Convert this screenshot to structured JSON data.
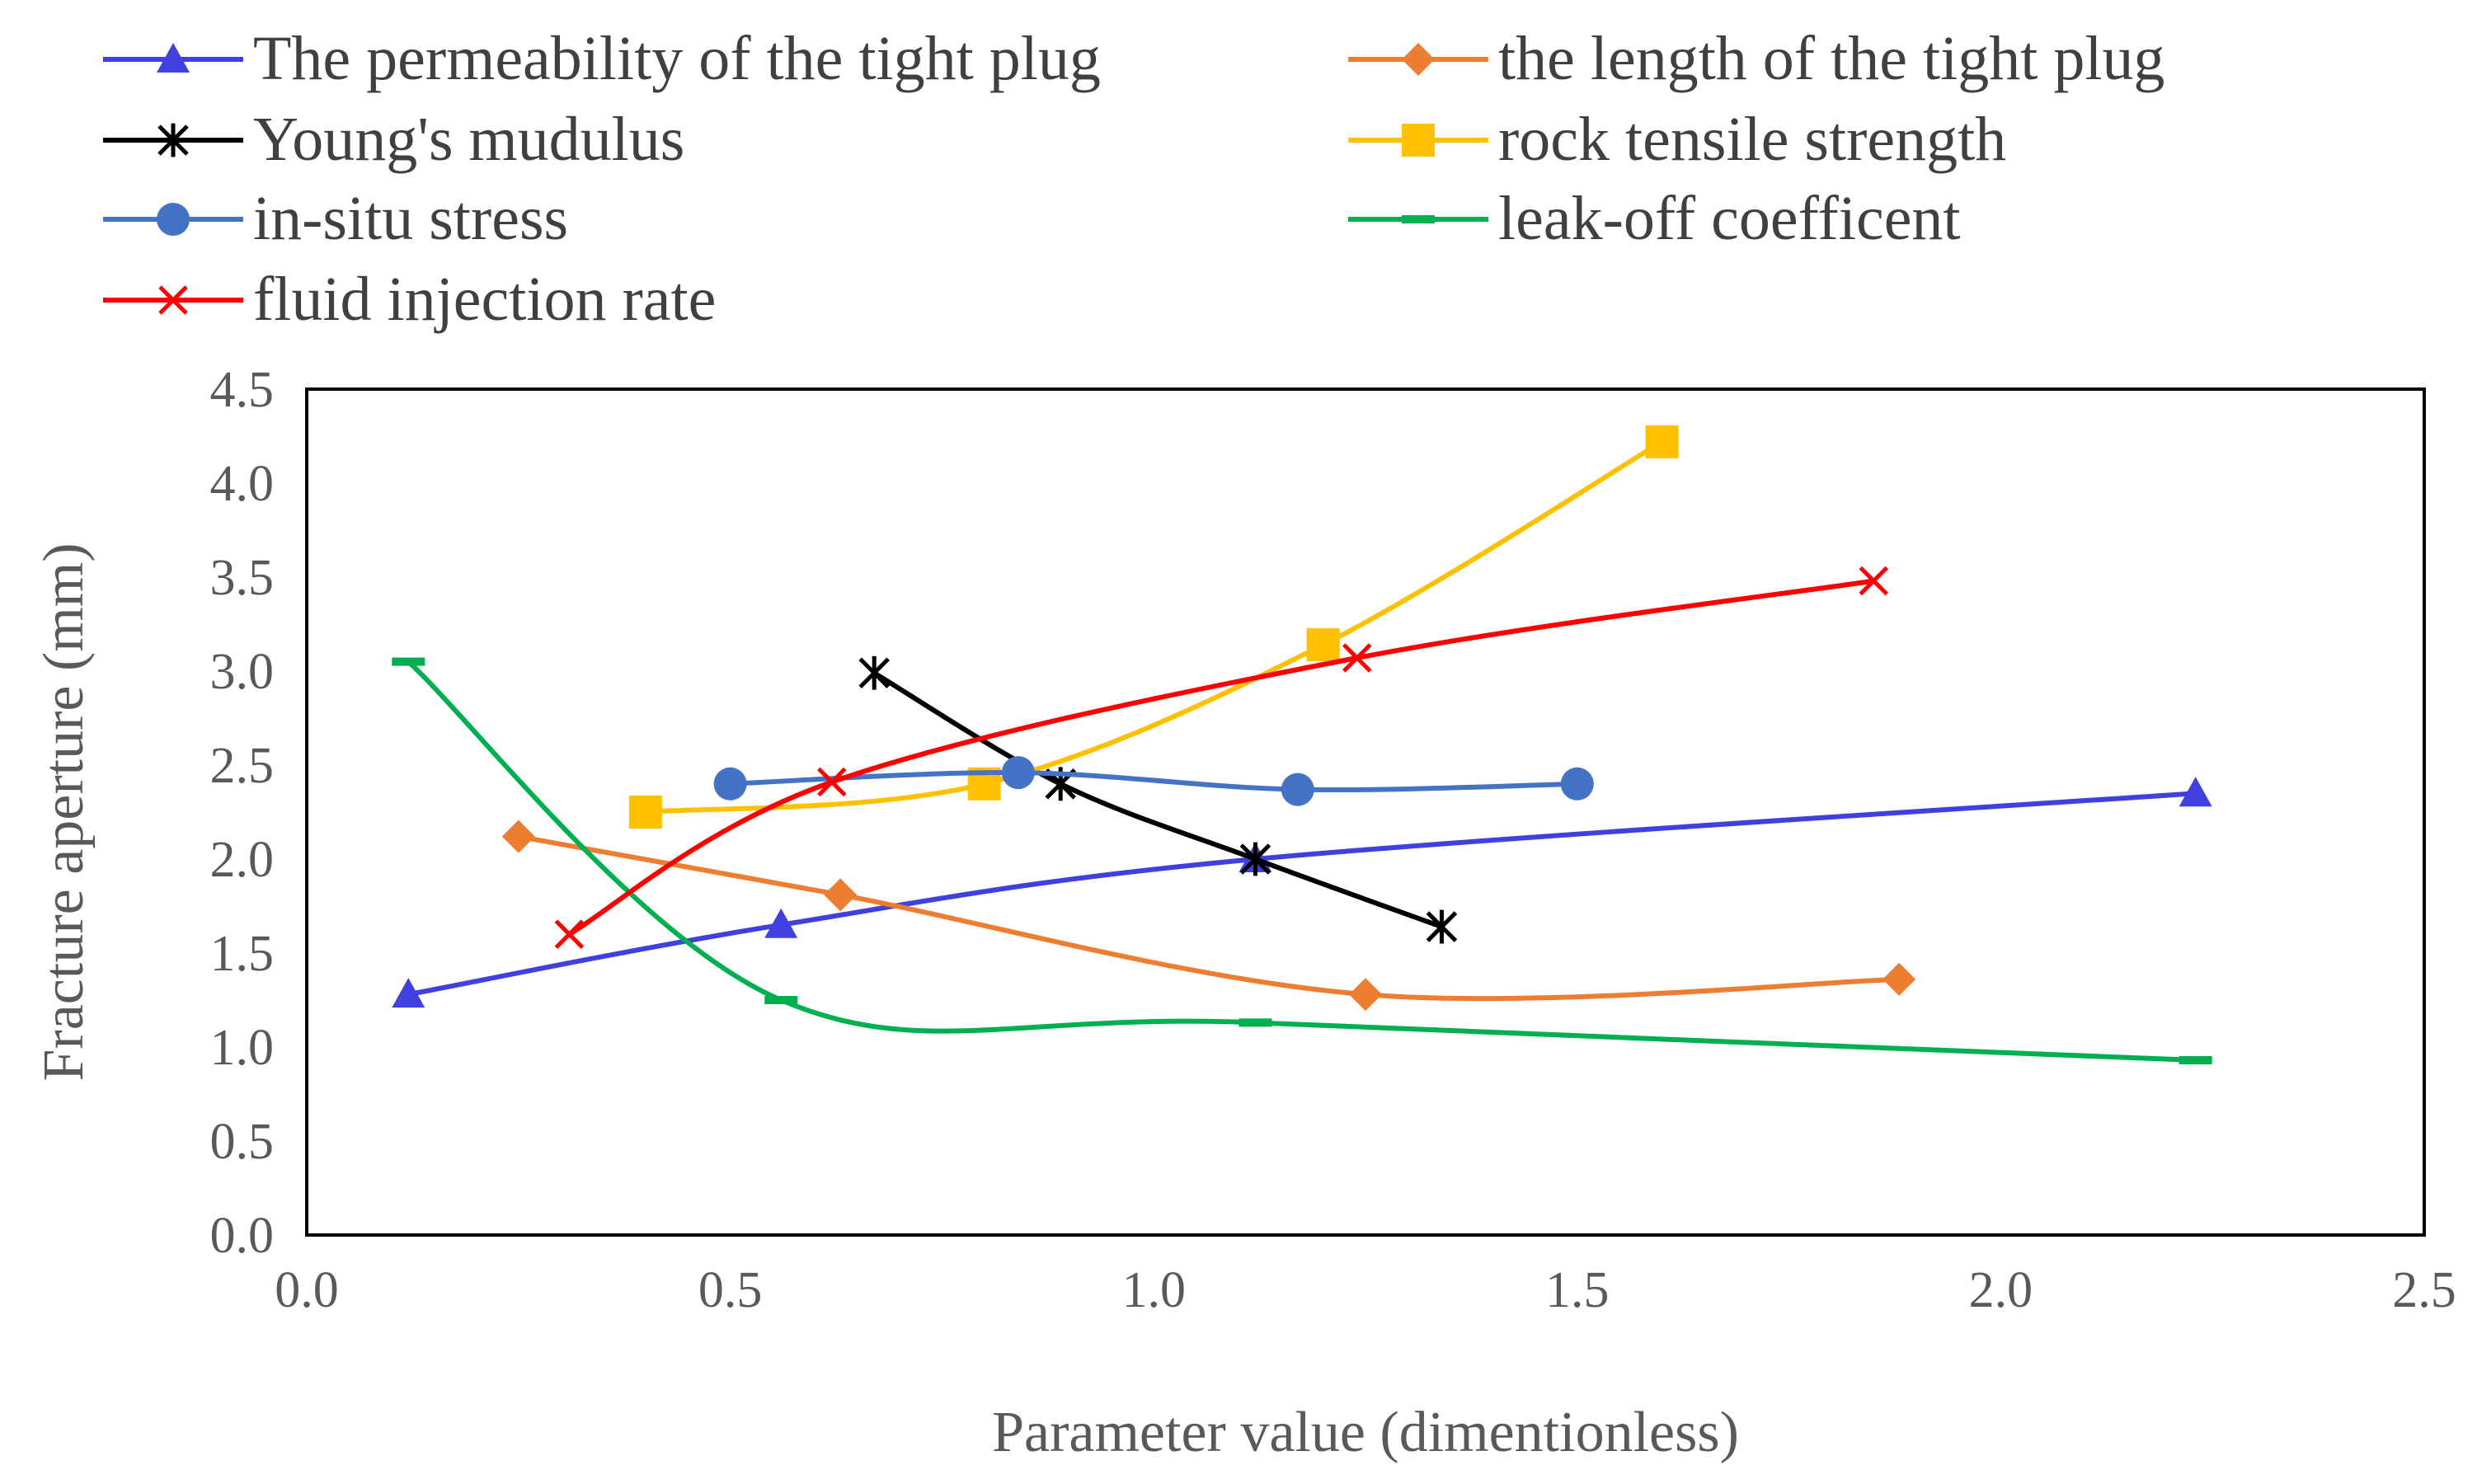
{
  "chart_data": {
    "type": "line",
    "xlabel": "Parameter value (dimentionless)",
    "ylabel": "Fracture aperture (mm)",
    "xlim": [
      0,
      2.5
    ],
    "ylim": [
      0,
      4.5
    ],
    "xticks": [
      "0.0",
      "0.5",
      "1.0",
      "1.5",
      "2.0",
      "2.5"
    ],
    "yticks": [
      "0.0",
      "0.5",
      "1.0",
      "1.5",
      "2.0",
      "2.5",
      "3.0",
      "3.5",
      "4.0",
      "4.5"
    ],
    "grid": false,
    "legend_position": "top",
    "series": [
      {
        "name": "The permeability of the tight plug",
        "color": "#4040e0",
        "marker": "triangle",
        "points": [
          [
            0.12,
            1.28
          ],
          [
            0.56,
            1.65
          ],
          [
            1.12,
            2.0
          ],
          [
            2.23,
            2.35
          ]
        ]
      },
      {
        "name": "the length of the tight plug",
        "color": "#ed7d31",
        "marker": "diamond",
        "points": [
          [
            0.25,
            2.12
          ],
          [
            0.63,
            1.81
          ],
          [
            1.25,
            1.28
          ],
          [
            1.88,
            1.36
          ]
        ]
      },
      {
        "name": "Young's mudulus",
        "color": "#000000",
        "marker": "star",
        "points": [
          [
            0.67,
            2.99
          ],
          [
            0.89,
            2.4
          ],
          [
            1.12,
            2.0
          ],
          [
            1.34,
            1.64
          ]
        ]
      },
      {
        "name": "rock tensile strength",
        "color": "#ffc000",
        "marker": "square",
        "points": [
          [
            0.4,
            2.25
          ],
          [
            0.8,
            2.4
          ],
          [
            1.2,
            3.14
          ],
          [
            1.6,
            4.22
          ]
        ]
      },
      {
        "name": "in-situ stress",
        "color": "#4472c4",
        "marker": "circle",
        "points": [
          [
            0.5,
            2.4
          ],
          [
            0.84,
            2.46
          ],
          [
            1.17,
            2.37
          ],
          [
            1.5,
            2.4
          ]
        ]
      },
      {
        "name": "leak-off coefficent",
        "color": "#00b050",
        "marker": "dash",
        "points": [
          [
            0.12,
            3.05
          ],
          [
            0.56,
            1.25
          ],
          [
            1.12,
            1.13
          ],
          [
            2.23,
            0.93
          ]
        ]
      },
      {
        "name": "fluid injection rate",
        "color": "#ff0000",
        "marker": "x",
        "points": [
          [
            0.31,
            1.6
          ],
          [
            0.62,
            2.41
          ],
          [
            1.24,
            3.07
          ],
          [
            1.85,
            3.48
          ]
        ]
      }
    ]
  }
}
